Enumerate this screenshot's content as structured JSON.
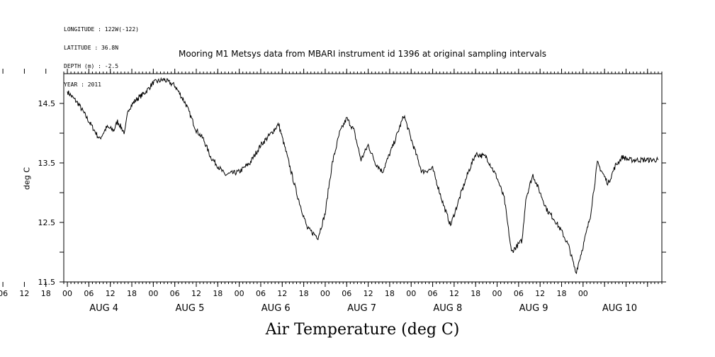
{
  "meta": {
    "longitude": "LONGITUDE : 122W(-122)",
    "latitude": "LATITUDE : 36.8N",
    "depth": "DEPTH (m) : -2.5",
    "year": "YEAR : 2011"
  },
  "chart_data": {
    "type": "line",
    "title": "Mooring M1 Metsys data from MBARI instrument id 1396 at original sampling intervals",
    "xlabel": "Air Temperature (deg C)",
    "ylabel": "deg C",
    "xlim": [
      "2011-08-03T23:00",
      "2011-08-10T22:00"
    ],
    "ylim": [
      11.5,
      15.0
    ],
    "yticks": [
      11.5,
      12.0,
      12.5,
      13.0,
      13.5,
      14.0,
      14.5
    ],
    "ytick_labels": [
      "11.5",
      "12.5",
      "13.5",
      "14.5"
    ],
    "xtick_labels": [
      "06",
      "12",
      "18",
      "00",
      "06",
      "12",
      "18",
      "00",
      "06",
      "12",
      "18",
      "00",
      "06",
      "12",
      "18",
      "00",
      "06",
      "12",
      "18",
      "00",
      "06",
      "12",
      "18",
      "00",
      "06",
      "12",
      "18",
      "00"
    ],
    "day_labels": [
      "AUG 4",
      "AUG 5",
      "AUG 6",
      "AUG 7",
      "AUG 8",
      "AUG 9",
      "AUG 10"
    ],
    "series": [
      {
        "x": [
          "2011-08-04T00:00",
          "2011-08-04T03:00",
          "2011-08-04T05:00",
          "2011-08-04T07:00",
          "2011-08-04T09:00",
          "2011-08-04T11:00",
          "2011-08-04T13:00",
          "2011-08-04T14:00",
          "2011-08-04T16:00",
          "2011-08-04T17:00",
          "2011-08-04T19:00",
          "2011-08-04T22:00",
          "2011-08-05T00:00",
          "2011-08-05T03:00",
          "2011-08-05T06:00",
          "2011-08-05T09:00",
          "2011-08-05T12:00",
          "2011-08-05T14:00",
          "2011-08-05T16:00",
          "2011-08-05T20:00",
          "2011-08-06T00:00",
          "2011-08-06T03:00",
          "2011-08-06T06:00",
          "2011-08-06T09:00",
          "2011-08-06T11:00",
          "2011-08-06T13:00",
          "2011-08-06T16:00",
          "2011-08-06T19:00",
          "2011-08-06T22:00",
          "2011-08-07T00:00",
          "2011-08-07T01:00",
          "2011-08-07T02:00",
          "2011-08-07T04:00",
          "2011-08-07T06:00",
          "2011-08-07T08:00",
          "2011-08-07T10:00",
          "2011-08-07T12:00",
          "2011-08-07T14:00",
          "2011-08-07T16:00",
          "2011-08-07T19:00",
          "2011-08-07T22:00",
          "2011-08-08T00:00",
          "2011-08-08T03:00",
          "2011-08-08T06:00",
          "2011-08-08T09:00",
          "2011-08-08T11:00",
          "2011-08-08T14:00",
          "2011-08-08T16:00",
          "2011-08-08T18:00",
          "2011-08-08T21:00",
          "2011-08-09T00:00",
          "2011-08-09T02:00",
          "2011-08-09T04:00",
          "2011-08-09T07:00",
          "2011-08-09T08:00",
          "2011-08-09T10:00",
          "2011-08-09T12:00",
          "2011-08-09T14:00",
          "2011-08-09T16:00",
          "2011-08-09T18:00",
          "2011-08-09T20:00",
          "2011-08-09T22:00",
          "2011-08-10T00:00",
          "2011-08-10T02:00",
          "2011-08-10T04:00",
          "2011-08-10T07:00",
          "2011-08-10T09:00",
          "2011-08-10T11:00",
          "2011-08-10T13:00",
          "2011-08-10T15:00",
          "2011-08-10T17:00",
          "2011-08-10T18:00",
          "2011-08-10T20:00",
          "2011-08-10T21:00"
        ],
        "values": [
          14.7,
          14.5,
          14.3,
          14.1,
          13.9,
          14.1,
          14.05,
          14.2,
          14.0,
          14.4,
          14.55,
          14.7,
          14.85,
          14.9,
          14.8,
          14.5,
          14.05,
          13.9,
          13.6,
          13.3,
          13.35,
          13.5,
          13.8,
          14.0,
          14.15,
          13.7,
          13.0,
          12.4,
          12.25,
          12.65,
          13.1,
          13.5,
          14.0,
          14.25,
          14.05,
          13.55,
          13.8,
          13.5,
          13.35,
          13.8,
          14.3,
          13.9,
          13.35,
          13.4,
          12.8,
          12.45,
          13.0,
          13.35,
          13.65,
          13.6,
          13.25,
          12.9,
          12.0,
          12.2,
          12.9,
          13.3,
          13.0,
          12.7,
          12.55,
          12.35,
          12.1,
          11.65,
          12.1,
          12.6,
          13.5,
          13.15,
          13.45,
          13.6,
          13.55,
          13.55,
          13.55,
          13.55,
          13.55,
          13.55
        ]
      }
    ]
  }
}
